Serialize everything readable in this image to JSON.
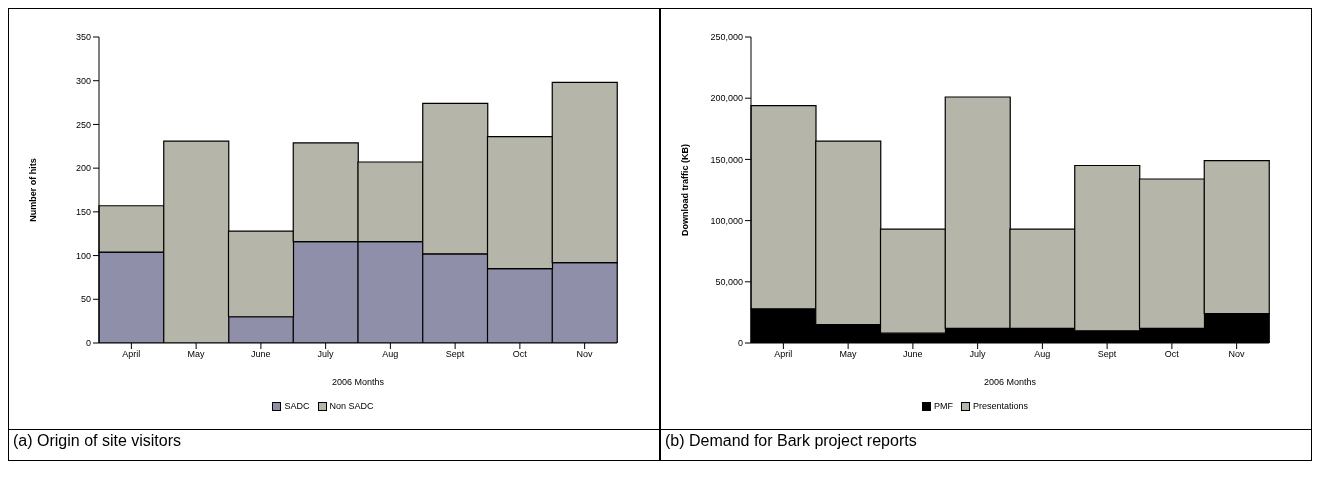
{
  "chart_data": [
    {
      "type": "bar",
      "stacked": true,
      "categories": [
        "April",
        "May",
        "June",
        "July",
        "Aug",
        "Sept",
        "Oct",
        "Nov"
      ],
      "xlabel": "2006 Months",
      "ylabel": "Number of hits",
      "ylim": [
        0,
        350
      ],
      "yticks": [
        0,
        50,
        100,
        150,
        200,
        250,
        300,
        350
      ],
      "grid": false,
      "legend": "bottom",
      "annotations": [
        "(a) Origin of site visitors"
      ],
      "series": [
        {
          "name": "SADC",
          "color": "#8f8fa9",
          "values": [
            104,
            0,
            30,
            116,
            116,
            102,
            85,
            92
          ]
        },
        {
          "name": "Non SADC",
          "color": "#b5b5a9",
          "values": [
            53,
            231,
            98,
            113,
            91,
            172,
            151,
            206
          ]
        }
      ]
    },
    {
      "type": "bar",
      "stacked": true,
      "categories": [
        "April",
        "May",
        "June",
        "July",
        "Aug",
        "Sept",
        "Oct",
        "Nov"
      ],
      "xlabel": "2006 Months",
      "ylabel": "Download traffic (KB)",
      "ylim": [
        0,
        250000
      ],
      "yticks": [
        {
          "value": 0,
          "label": "0"
        },
        {
          "value": 50000,
          "label": "50,000"
        },
        {
          "value": 100000,
          "label": "100,000"
        },
        {
          "value": 150000,
          "label": "150,000"
        },
        {
          "value": 200000,
          "label": "200,000"
        },
        {
          "value": 250000,
          "label": "250,000"
        }
      ],
      "grid": false,
      "legend": "bottom",
      "annotations": [
        "(b) Demand for Bark project reports"
      ],
      "series": [
        {
          "name": "PMF",
          "color": "#000000",
          "values": [
            28000,
            15000,
            8000,
            12000,
            12000,
            10000,
            12000,
            24000
          ]
        },
        {
          "name": "Presentations",
          "color": "#b5b5a9",
          "values": [
            166000,
            150000,
            85000,
            189000,
            81000,
            135000,
            122000,
            125000
          ]
        }
      ]
    }
  ]
}
